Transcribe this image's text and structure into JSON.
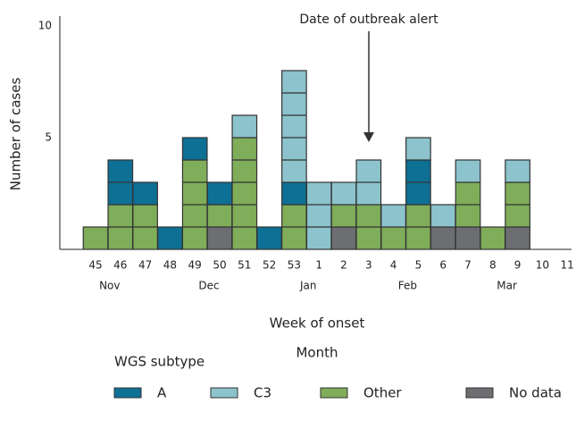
{
  "chart_data": {
    "type": "bar",
    "annotation": "Date of outbreak alert",
    "categories": [
      "45",
      "46",
      "47",
      "48",
      "49",
      "50",
      "51",
      "52",
      "53",
      "1",
      "2",
      "3",
      "4",
      "5",
      "6",
      "7",
      "8",
      "9",
      "10",
      "11"
    ],
    "month_labels": [
      null,
      "Nov",
      null,
      null,
      null,
      "Dec",
      null,
      null,
      null,
      "Jan",
      null,
      null,
      null,
      "Feb",
      null,
      null,
      null,
      "Mar",
      null,
      null
    ],
    "series": [
      {
        "name": "A",
        "color": "#0e7094",
        "values": [
          0,
          2,
          1,
          1,
          1,
          1,
          0,
          1,
          1,
          0,
          0,
          0,
          0,
          2,
          0,
          0,
          0,
          0,
          0,
          0
        ]
      },
      {
        "name": "C3",
        "color": "#8cc3cc",
        "values": [
          0,
          0,
          0,
          0,
          0,
          0,
          1,
          0,
          5,
          3,
          1,
          2,
          1,
          1,
          1,
          1,
          0,
          1,
          0,
          0
        ]
      },
      {
        "name": "Other",
        "color": "#7fad5a",
        "values": [
          1,
          2,
          2,
          0,
          4,
          1,
          5,
          0,
          2,
          0,
          1,
          2,
          1,
          2,
          0,
          2,
          1,
          2,
          0,
          0
        ]
      },
      {
        "name": "No data",
        "color": "#6d6e71",
        "values": [
          0,
          0,
          0,
          0,
          0,
          1,
          0,
          0,
          0,
          0,
          1,
          0,
          0,
          0,
          1,
          1,
          0,
          1,
          0,
          0
        ]
      }
    ],
    "xlabel": "Week of onset",
    "xlabel2": "Month",
    "ylabel": "Number of cases",
    "legend_title": "WGS subtype",
    "ylim": [
      0,
      10.4
    ],
    "yticks": [
      5,
      10
    ]
  }
}
